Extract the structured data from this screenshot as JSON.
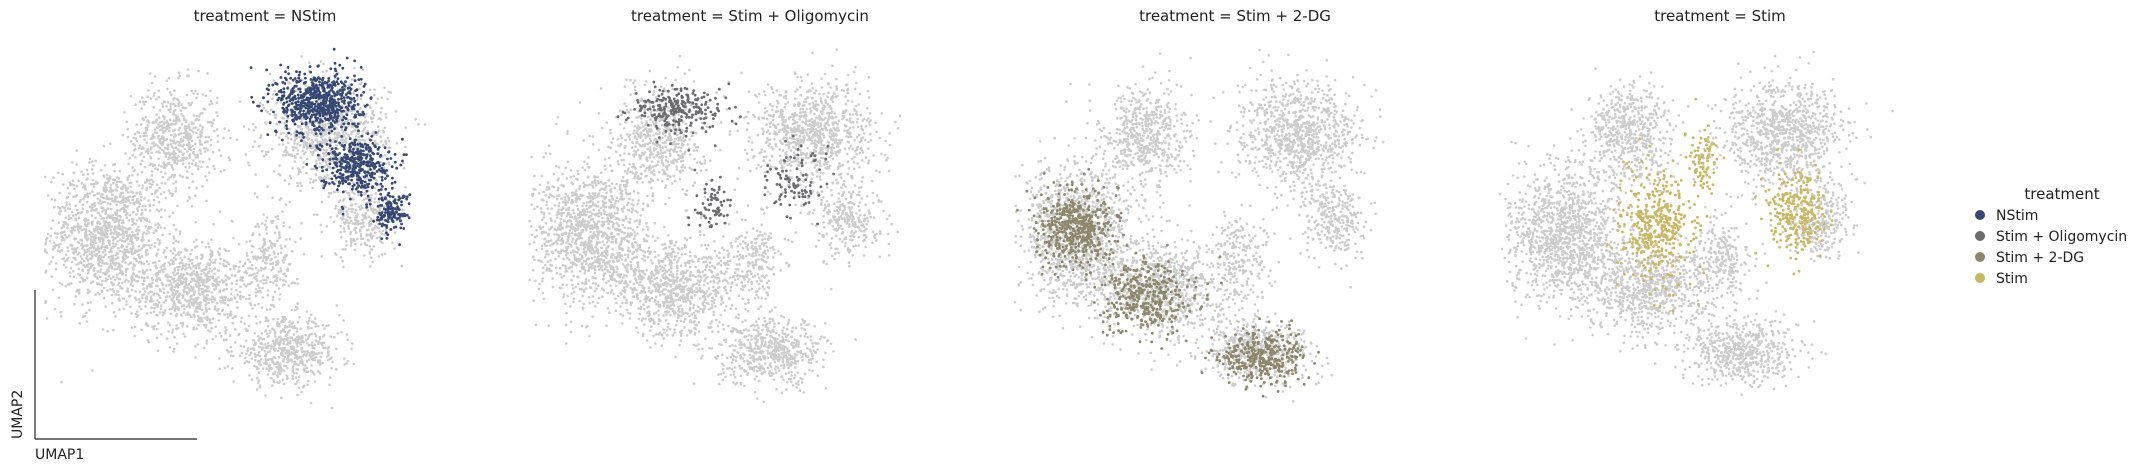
{
  "chart_data": {
    "type": "scatter",
    "panels": [
      {
        "title": "treatment = NStim",
        "highlight": "NStim"
      },
      {
        "title": "treatment = Stim + Oligomycin",
        "highlight": "Stim + Oligomycin"
      },
      {
        "title": "treatment = Stim + 2-DG",
        "highlight": "Stim + 2-DG"
      },
      {
        "title": "treatment = Stim",
        "highlight": "Stim"
      }
    ],
    "xlabel": "UMAP1",
    "ylabel": "UMAP2",
    "background_color": "#cccccc",
    "legend": {
      "title": "treatment",
      "placement": "right",
      "entries": [
        {
          "label": "NStim",
          "color": "#364873"
        },
        {
          "label": "Stim + Oligomycin",
          "color": "#6c6c70"
        },
        {
          "label": "Stim + 2-DG",
          "color": "#8e876c"
        },
        {
          "label": "Stim",
          "color": "#c9b763"
        }
      ]
    },
    "clusters": {
      "NStim": [
        [
          6.2,
          8.4,
          0.85,
          0.75,
          1200
        ],
        [
          7.0,
          6.8,
          0.7,
          0.65,
          700
        ],
        [
          7.8,
          5.6,
          0.35,
          0.45,
          250
        ]
      ],
      "Stim + Oligomycin": [
        [
          3.4,
          8.2,
          0.95,
          0.55,
          450
        ],
        [
          4.2,
          5.8,
          0.4,
          0.55,
          120
        ],
        [
          6.0,
          6.3,
          0.55,
          0.75,
          180
        ]
      ],
      "Stim + 2-DG": [
        [
          1.5,
          5.2,
          0.8,
          0.9,
          900
        ],
        [
          3.0,
          3.4,
          0.9,
          0.8,
          700
        ],
        [
          5.6,
          1.9,
          0.9,
          0.65,
          650
        ]
      ],
      "Stim": [
        [
          3.6,
          5.2,
          0.75,
          1.25,
          750
        ],
        [
          6.7,
          5.6,
          0.55,
          0.95,
          500
        ],
        [
          4.6,
          6.9,
          0.28,
          0.9,
          150
        ]
      ]
    },
    "xlim": [
      0,
      10
    ],
    "ylim": [
      0,
      10
    ]
  }
}
